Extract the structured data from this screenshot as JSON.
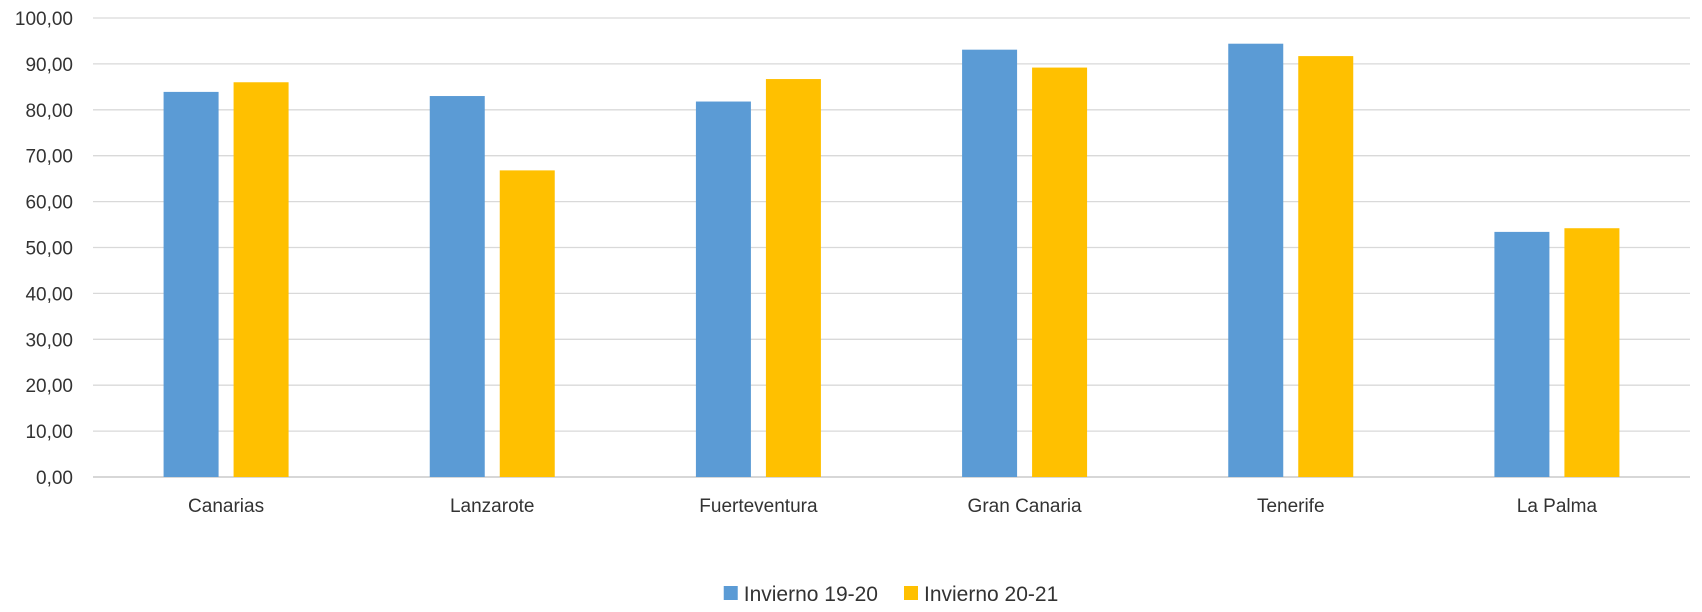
{
  "chart_data": {
    "type": "bar",
    "categories": [
      "Canarias",
      "Lanzarote",
      "Fuerteventura",
      "Gran Canaria",
      "Tenerife",
      "La Palma"
    ],
    "series": [
      {
        "name": "Invierno 19-20",
        "color": "#5B9BD5",
        "values": [
          83.9,
          83.0,
          81.8,
          93.1,
          94.4,
          53.4
        ]
      },
      {
        "name": "Invierno 20-21",
        "color": "#FFC000",
        "values": [
          86.0,
          66.8,
          86.7,
          89.2,
          91.7,
          54.2
        ]
      }
    ],
    "ylim": [
      0,
      100
    ],
    "yticks": [
      "0,00",
      "10,00",
      "20,00",
      "30,00",
      "40,00",
      "50,00",
      "60,00",
      "70,00",
      "80,00",
      "90,00",
      "100,00"
    ],
    "title": "",
    "xlabel": "",
    "ylabel": "",
    "grid": true,
    "legend_position": "bottom-center"
  }
}
